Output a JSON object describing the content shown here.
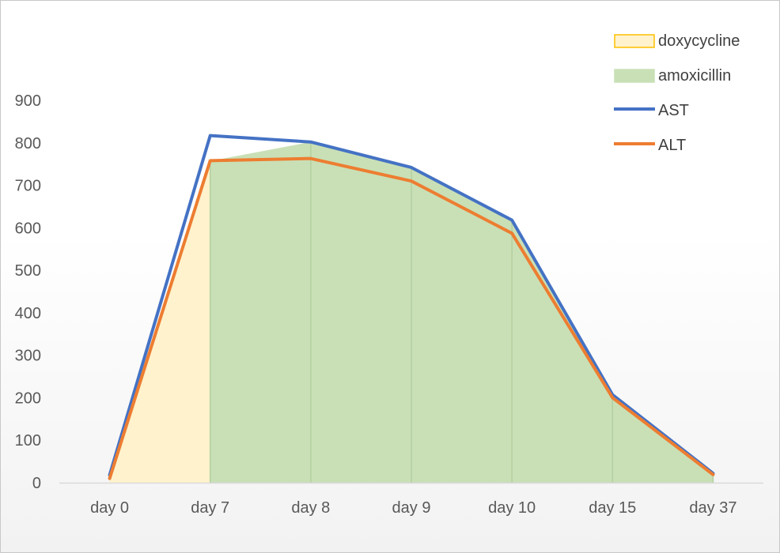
{
  "chart_data": {
    "type": "area",
    "categories": [
      "day 0",
      "day 7",
      "day 8",
      "day 9",
      "day 10",
      "day 15",
      "day 37"
    ],
    "ylim": [
      0,
      900
    ],
    "ytick_step": 100,
    "grid": false,
    "legend_position": "top-right",
    "title": "",
    "xlabel": "",
    "ylabel": "",
    "series": [
      {
        "name": "doxycycline",
        "kind": "area",
        "color": "#fff2cc",
        "border": "#ffc000",
        "values": [
          10,
          757,
          null,
          null,
          null,
          null,
          null
        ]
      },
      {
        "name": "amoxicillin",
        "kind": "area",
        "color": "#c9e0b6",
        "border": "#c9e0b6",
        "values": [
          null,
          757,
          802,
          740,
          618,
          207,
          22
        ]
      },
      {
        "name": "AST",
        "kind": "line",
        "color": "#4472c4",
        "values": [
          18,
          817,
          802,
          742,
          618,
          207,
          22
        ]
      },
      {
        "name": "ALT",
        "kind": "line",
        "color": "#ed7d31",
        "values": [
          10,
          758,
          763,
          710,
          587,
          200,
          19
        ]
      }
    ]
  }
}
